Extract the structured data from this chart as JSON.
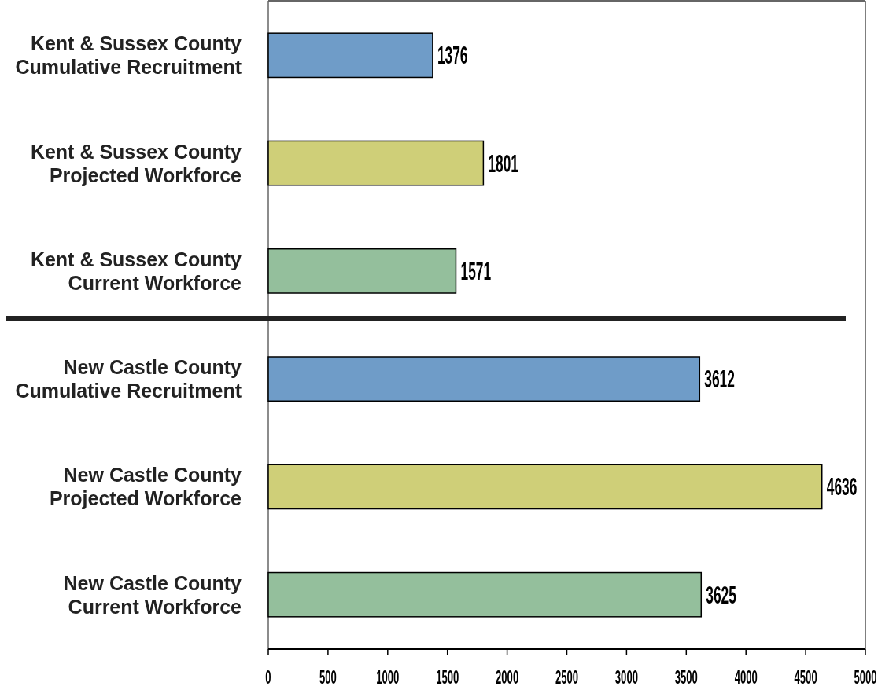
{
  "chart_data": {
    "type": "bar",
    "orientation": "horizontal",
    "categories": [
      "Kent & Sussex County\nCumulative Recruitment",
      "Kent & Sussex County\nProjected Workforce",
      "Kent & Sussex County\nCurrent Workforce",
      "New Castle County\nCumulative Recruitment",
      "New Castle County\nProjected Workforce",
      "New Castle County\nCurrent Workforce"
    ],
    "values": [
      1376,
      1801,
      1571,
      3612,
      4636,
      3625
    ],
    "colors": [
      "#6f9cc8",
      "#cfcf78",
      "#94bf9c",
      "#6f9cc8",
      "#cfcf78",
      "#94bf9c"
    ],
    "xlim": [
      0,
      5000
    ],
    "xticks": [
      0,
      500,
      1000,
      1500,
      2000,
      2500,
      3000,
      3500,
      4000,
      4500,
      5000
    ],
    "data_labels": true
  }
}
